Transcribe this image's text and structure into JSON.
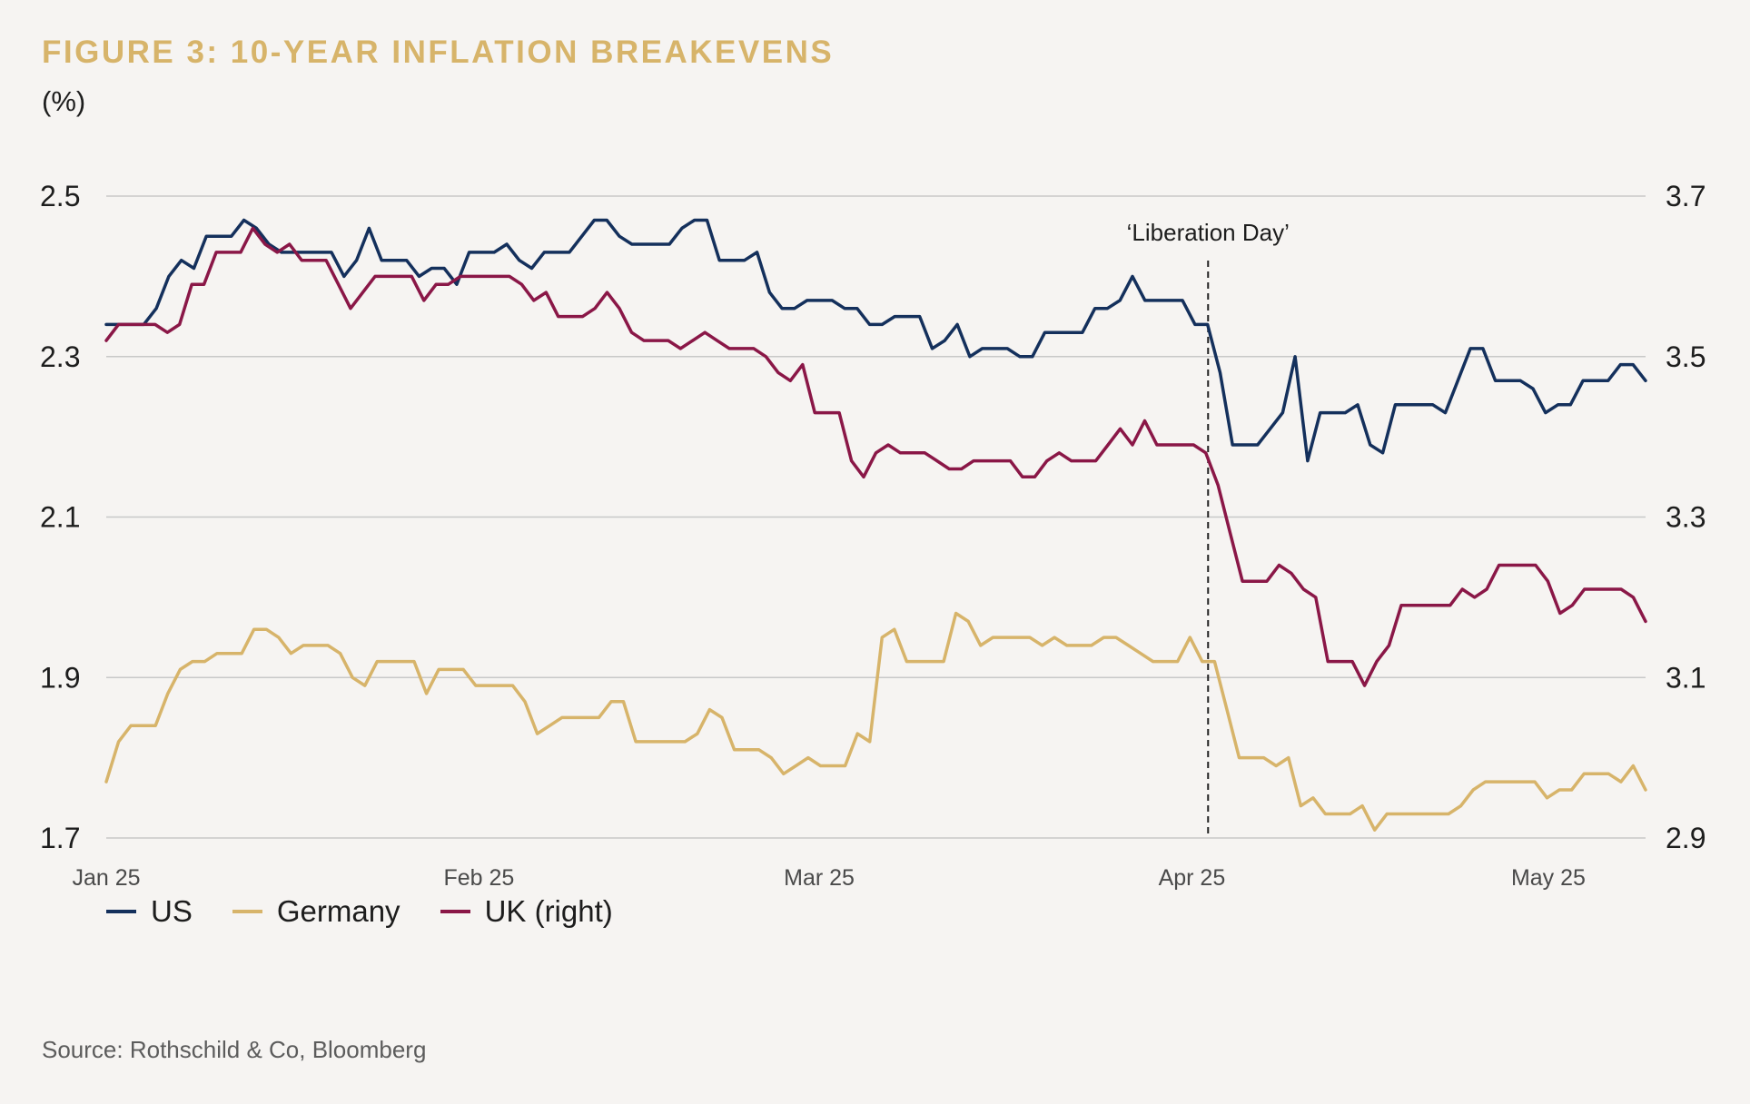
{
  "header": {
    "title": "FIGURE 3: 10-YEAR INFLATION BREAKEVENS",
    "unit": "(%)"
  },
  "footer": {
    "source": "Source: Rothschild & Co, Bloomberg"
  },
  "colors": {
    "us": "#14305c",
    "germany": "#d7b46a",
    "uk": "#8a1747",
    "grid": "#c8c8c8",
    "text": "#1d1d1d",
    "title": "#d7b46a"
  },
  "legend": [
    {
      "label": "US",
      "series": "us"
    },
    {
      "label": "Germany",
      "series": "germany"
    },
    {
      "label": "UK (right)",
      "series": "uk"
    }
  ],
  "chart_data": {
    "type": "line",
    "title": "FIGURE 3: 10-YEAR INFLATION BREAKEVENS",
    "ylabel": "(%)",
    "ylim_left": [
      1.7,
      2.5
    ],
    "ylim_right": [
      2.9,
      3.7
    ],
    "yticks_left": [
      "2.5",
      "2.3",
      "2.1",
      "1.9",
      "1.7"
    ],
    "yticks_right": [
      "3.7",
      "3.5",
      "3.3",
      "3.1",
      "2.9"
    ],
    "xlim_index": [
      0,
      95
    ],
    "xticks": [
      {
        "label": "Jan 25",
        "index": 0
      },
      {
        "label": "Feb 25",
        "index": 23
      },
      {
        "label": "Mar 25",
        "index": 44
      },
      {
        "label": "Apr 25",
        "index": 67
      },
      {
        "label": "May 25",
        "index": 89
      }
    ],
    "annotation": {
      "label": "‘Liberation Day’",
      "index": 68
    },
    "grid": true,
    "series": [
      {
        "name": "US",
        "key": "us",
        "axis": "left",
        "values": [
          2.34,
          2.34,
          2.34,
          2.34,
          2.36,
          2.4,
          2.42,
          2.41,
          2.45,
          2.45,
          2.45,
          2.47,
          2.46,
          2.44,
          2.43,
          2.43,
          2.43,
          2.43,
          2.43,
          2.4,
          2.42,
          2.46,
          2.42,
          2.42,
          2.42,
          2.4,
          2.41,
          2.41,
          2.39,
          2.43,
          2.43,
          2.43,
          2.44,
          2.42,
          2.41,
          2.43,
          2.43,
          2.43,
          2.45,
          2.47,
          2.47,
          2.45,
          2.44,
          2.44,
          2.44,
          2.44,
          2.46,
          2.47,
          2.47,
          2.42,
          2.42,
          2.42,
          2.43,
          2.38,
          2.36,
          2.36,
          2.37,
          2.37,
          2.37,
          2.36,
          2.36,
          2.34,
          2.34,
          2.35,
          2.35,
          2.35,
          2.31,
          2.32,
          2.34,
          2.3,
          2.31,
          2.31,
          2.31,
          2.3,
          2.3,
          2.33,
          2.33,
          2.33,
          2.33,
          2.36,
          2.36,
          2.37,
          2.4,
          2.37,
          2.37,
          2.37,
          2.37,
          2.34,
          2.34,
          2.28,
          2.19,
          2.19,
          2.19,
          2.21,
          2.23,
          2.3,
          2.17,
          2.23,
          2.23,
          2.23,
          2.24,
          2.19,
          2.18,
          2.24,
          2.24,
          2.24,
          2.24,
          2.23,
          2.27,
          2.31,
          2.31,
          2.27,
          2.27,
          2.27,
          2.26,
          2.23,
          2.24,
          2.24,
          2.27,
          2.27,
          2.27,
          2.29,
          2.29,
          2.27
        ]
      },
      {
        "name": "Germany",
        "key": "germany",
        "axis": "left",
        "values": [
          1.77,
          1.82,
          1.84,
          1.84,
          1.84,
          1.88,
          1.91,
          1.92,
          1.92,
          1.93,
          1.93,
          1.93,
          1.96,
          1.96,
          1.95,
          1.93,
          1.94,
          1.94,
          1.94,
          1.93,
          1.9,
          1.89,
          1.92,
          1.92,
          1.92,
          1.92,
          1.88,
          1.91,
          1.91,
          1.91,
          1.89,
          1.89,
          1.89,
          1.89,
          1.87,
          1.83,
          1.84,
          1.85,
          1.85,
          1.85,
          1.85,
          1.87,
          1.87,
          1.82,
          1.82,
          1.82,
          1.82,
          1.82,
          1.83,
          1.86,
          1.85,
          1.81,
          1.81,
          1.81,
          1.8,
          1.78,
          1.79,
          1.8,
          1.79,
          1.79,
          1.79,
          1.83,
          1.82,
          1.95,
          1.96,
          1.92,
          1.92,
          1.92,
          1.92,
          1.98,
          1.97,
          1.94,
          1.95,
          1.95,
          1.95,
          1.95,
          1.94,
          1.95,
          1.94,
          1.94,
          1.94,
          1.95,
          1.95,
          1.94,
          1.93,
          1.92,
          1.92,
          1.92,
          1.95,
          1.92,
          1.92,
          1.86,
          1.8,
          1.8,
          1.8,
          1.79,
          1.8,
          1.74,
          1.75,
          1.73,
          1.73,
          1.73,
          1.74,
          1.71,
          1.73,
          1.73,
          1.73,
          1.73,
          1.73,
          1.73,
          1.74,
          1.76,
          1.77,
          1.77,
          1.77,
          1.77,
          1.77,
          1.75,
          1.76,
          1.76,
          1.78,
          1.78,
          1.78,
          1.77,
          1.79,
          1.76
        ]
      },
      {
        "name": "UK (right)",
        "key": "uk",
        "axis": "right",
        "values": [
          3.52,
          3.54,
          3.54,
          3.54,
          3.54,
          3.53,
          3.54,
          3.59,
          3.59,
          3.63,
          3.63,
          3.63,
          3.66,
          3.64,
          3.63,
          3.64,
          3.62,
          3.62,
          3.62,
          3.59,
          3.56,
          3.58,
          3.6,
          3.6,
          3.6,
          3.6,
          3.57,
          3.59,
          3.59,
          3.6,
          3.6,
          3.6,
          3.6,
          3.6,
          3.59,
          3.57,
          3.58,
          3.55,
          3.55,
          3.55,
          3.56,
          3.58,
          3.56,
          3.53,
          3.52,
          3.52,
          3.52,
          3.51,
          3.52,
          3.53,
          3.52,
          3.51,
          3.51,
          3.51,
          3.5,
          3.48,
          3.47,
          3.49,
          3.43,
          3.43,
          3.43,
          3.37,
          3.35,
          3.38,
          3.39,
          3.38,
          3.38,
          3.38,
          3.37,
          3.36,
          3.36,
          3.37,
          3.37,
          3.37,
          3.37,
          3.35,
          3.35,
          3.37,
          3.38,
          3.37,
          3.37,
          3.37,
          3.39,
          3.41,
          3.39,
          3.42,
          3.39,
          3.39,
          3.39,
          3.39,
          3.38,
          3.34,
          3.28,
          3.22,
          3.22,
          3.22,
          3.24,
          3.23,
          3.21,
          3.2,
          3.12,
          3.12,
          3.12,
          3.09,
          3.12,
          3.14,
          3.19,
          3.19,
          3.19,
          3.19,
          3.19,
          3.21,
          3.2,
          3.21,
          3.24,
          3.24,
          3.24,
          3.24,
          3.22,
          3.18,
          3.19,
          3.21,
          3.21,
          3.21,
          3.21,
          3.2,
          3.17
        ]
      }
    ]
  }
}
